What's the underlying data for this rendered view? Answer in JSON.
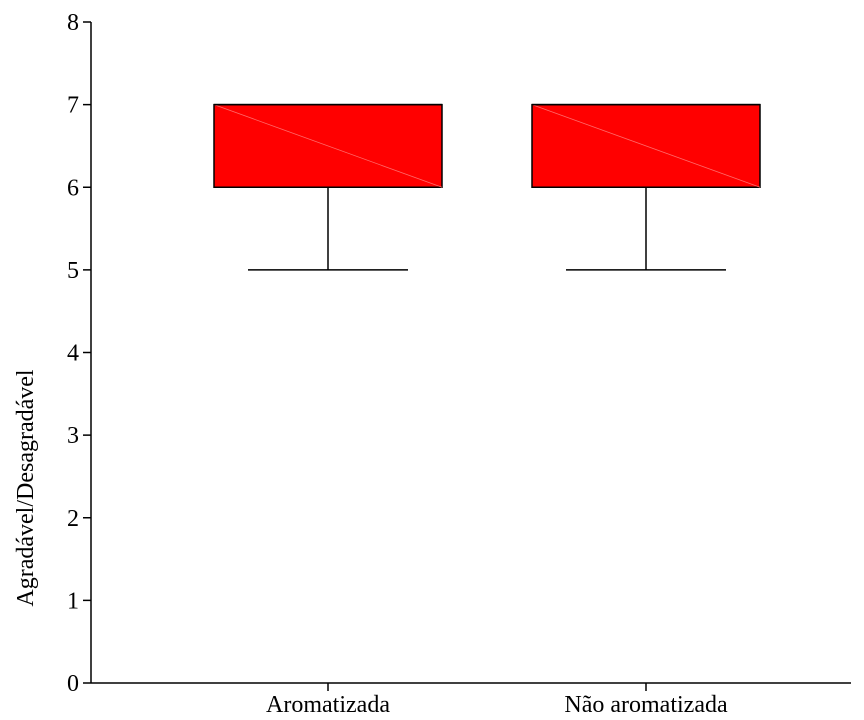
{
  "chart_data": {
    "type": "box",
    "title": "",
    "xlabel": "",
    "ylabel": "Agradável/Desagradável",
    "ylim": [
      0,
      8
    ],
    "yticks": [
      "0",
      "1",
      "2",
      "3",
      "4",
      "5",
      "6",
      "7",
      "8"
    ],
    "grid": false,
    "box_color": "#ff0000",
    "categories": [
      "Aromatizada",
      "Não aromatizada"
    ],
    "boxes": [
      {
        "category": "Aromatizada",
        "min": 5,
        "q1": 6,
        "median": 7,
        "q3": 7,
        "max": 7
      },
      {
        "category": "Não aromatizada",
        "min": 5,
        "q1": 6,
        "median": 7,
        "q3": 7,
        "max": 7
      }
    ]
  }
}
